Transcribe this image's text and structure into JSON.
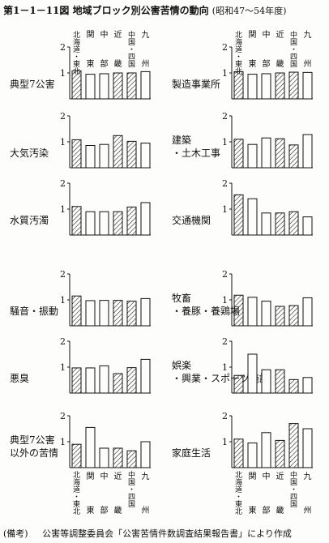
{
  "title_prefix": "第1－1－11図",
  "title_main": "地域ブロック別公害苦情の動向",
  "title_sub": "(昭和47～54年度)",
  "note_label": "(備考)",
  "note_text": "公害等調整委員会「公害苦情件数調査結果報告書」により作成",
  "categories": [
    "北海道・東北",
    "関東",
    "中部",
    "近畿",
    "中国・四国",
    "九州"
  ],
  "top_header_upper": [
    "北海道",
    "関",
    "中",
    "近",
    "中国・四国",
    "九"
  ],
  "top_header_lower": [
    "東北",
    "東",
    "部",
    "畿",
    "",
    "州"
  ],
  "bottom_header_upper": [
    "北海道・東北",
    "関",
    "中",
    "近",
    "中国・四国",
    "九"
  ],
  "bottom_header_lower": [
    "",
    "東",
    "部",
    "畿",
    "",
    "州"
  ],
  "bar_colors": {
    "hatched": "#111111",
    "plain": "#111111"
  },
  "chart_data": [
    {
      "type": "bar",
      "title": "典型7公害",
      "ylim": [
        0,
        2
      ],
      "yticks": [
        "1",
        "2"
      ],
      "values": [
        1.08,
        0.95,
        0.97,
        1.0,
        1.0,
        1.05
      ]
    },
    {
      "type": "bar",
      "title": "製造事業所",
      "ylim": [
        0,
        2
      ],
      "yticks": [
        "1",
        "2"
      ],
      "values": [
        1.05,
        0.95,
        0.97,
        1.0,
        1.03,
        1.02
      ]
    },
    {
      "type": "bar",
      "title": "大気汚染",
      "ylim": [
        0,
        2
      ],
      "yticks": [
        "1",
        "2"
      ],
      "values": [
        1.08,
        0.86,
        0.9,
        1.24,
        1.02,
        0.95
      ]
    },
    {
      "type": "bar",
      "title": "建築・土木工事",
      "ylim": [
        0,
        2
      ],
      "yticks": [
        "1",
        "2"
      ],
      "values": [
        1.1,
        0.9,
        1.15,
        1.12,
        0.88,
        1.28
      ]
    },
    {
      "type": "bar",
      "title": "水質汚濁",
      "ylim": [
        0,
        2
      ],
      "yticks": [
        "1",
        "2"
      ],
      "values": [
        1.1,
        0.9,
        0.9,
        0.9,
        1.08,
        1.25
      ]
    },
    {
      "type": "bar",
      "title": "交通機関",
      "ylim": [
        0,
        2
      ],
      "yticks": [
        "1",
        "2"
      ],
      "values": [
        1.55,
        1.4,
        0.85,
        0.85,
        0.9,
        0.7
      ]
    },
    {
      "type": "bar",
      "title": "騒音・振動",
      "ylim": [
        0,
        2
      ],
      "yticks": [
        "1",
        "2"
      ],
      "values": [
        1.15,
        0.97,
        0.98,
        0.98,
        0.95,
        1.05
      ]
    },
    {
      "type": "bar",
      "title": "牧畜・養豚・養鶏場",
      "ylim": [
        0,
        2
      ],
      "yticks": [
        "1",
        "2"
      ],
      "values": [
        1.18,
        1.1,
        0.95,
        0.75,
        0.78,
        1.08
      ]
    },
    {
      "type": "bar",
      "title": "悪臭",
      "ylim": [
        0,
        2
      ],
      "yticks": [
        "1",
        "2"
      ],
      "values": [
        0.97,
        0.97,
        1.05,
        0.75,
        0.98,
        1.3
      ]
    },
    {
      "type": "bar",
      "title": "娯楽・興業・スポーツ施設",
      "ylim": [
        0,
        2
      ],
      "yticks": [
        "1",
        "2"
      ],
      "values": [
        0.68,
        1.5,
        0.9,
        0.9,
        0.52,
        0.6
      ]
    },
    {
      "type": "bar",
      "title": "典型7公害以外の苦情",
      "ylim": [
        0,
        2
      ],
      "yticks": [
        "1",
        "2"
      ],
      "values": [
        0.9,
        1.55,
        0.75,
        0.75,
        0.65,
        1.0
      ]
    },
    {
      "type": "bar",
      "title": "家庭生活",
      "ylim": [
        0,
        2
      ],
      "yticks": [
        "1",
        "2"
      ],
      "values": [
        1.1,
        0.95,
        1.35,
        1.05,
        1.7,
        1.5
      ]
    }
  ]
}
